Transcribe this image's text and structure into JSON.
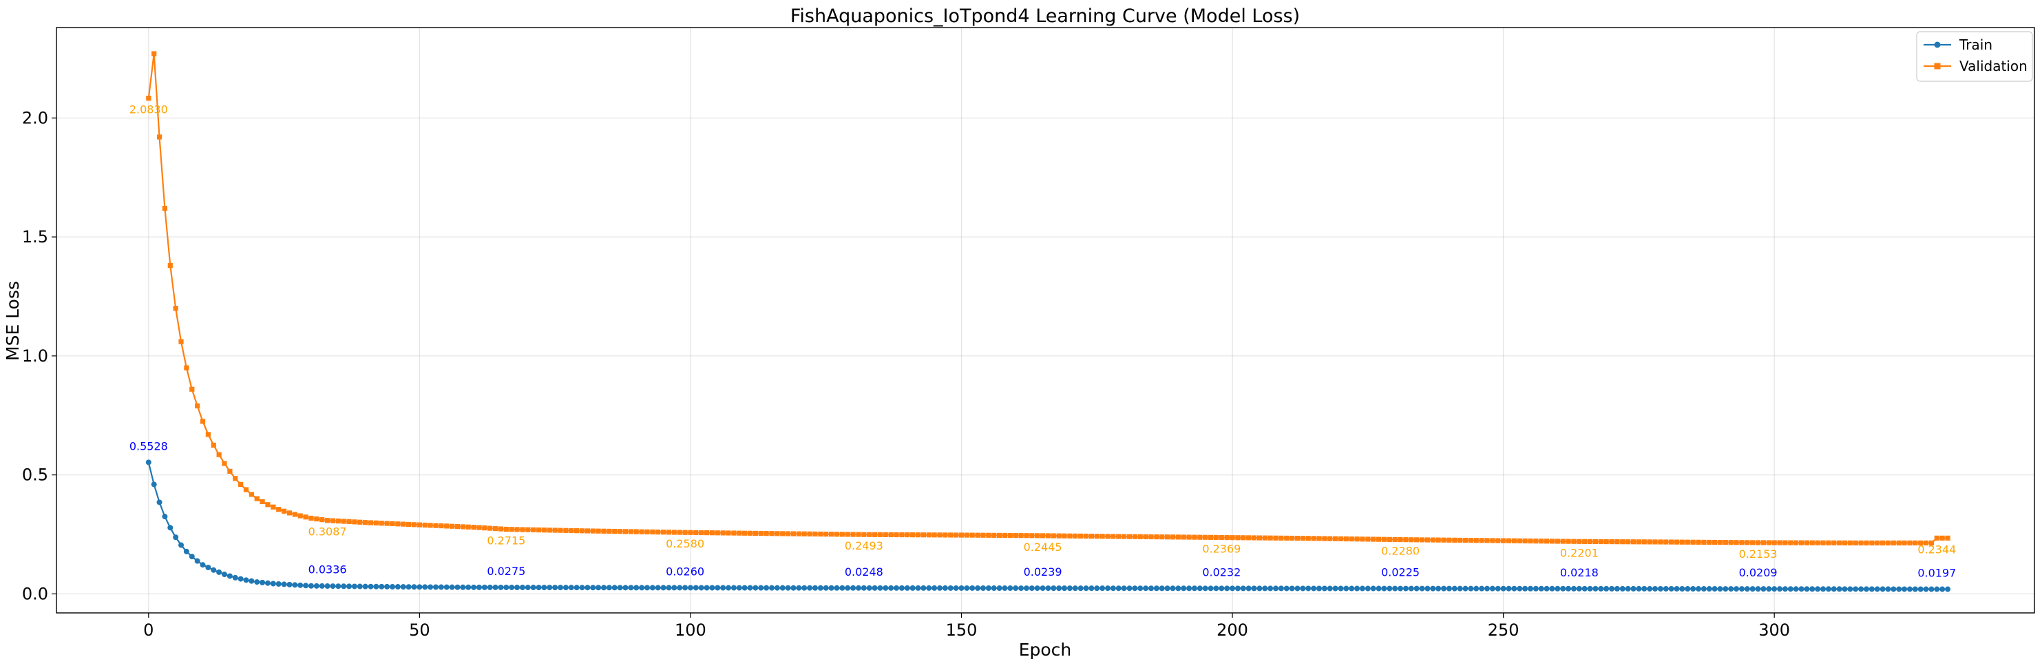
{
  "chart_data": {
    "type": "line",
    "title": "FishAquaponics_IoTpond4 Learning Curve (Model Loss)",
    "xlabel": "Epoch",
    "ylabel": "MSE Loss",
    "xlim": [
      -17,
      348
    ],
    "ylim": [
      -0.08,
      2.38
    ],
    "xticks": [
      0,
      50,
      100,
      150,
      200,
      250,
      300
    ],
    "yticks": [
      0.0,
      0.5,
      1.0,
      1.5,
      2.0
    ],
    "grid": true,
    "legend_position": "top-right",
    "n_epochs": 333,
    "series": [
      {
        "name": "Train",
        "color": "#1f77b4",
        "marker": "circle",
        "keypoints": [
          [
            0,
            0.5528
          ],
          [
            1,
            0.46
          ],
          [
            2,
            0.385
          ],
          [
            3,
            0.325
          ],
          [
            4,
            0.278
          ],
          [
            5,
            0.238
          ],
          [
            6,
            0.205
          ],
          [
            7,
            0.178
          ],
          [
            8,
            0.157
          ],
          [
            9,
            0.138
          ],
          [
            10,
            0.122
          ],
          [
            12,
            0.1
          ],
          [
            14,
            0.082
          ],
          [
            16,
            0.068
          ],
          [
            18,
            0.058
          ],
          [
            20,
            0.05
          ],
          [
            23,
            0.043
          ],
          [
            26,
            0.039
          ],
          [
            30,
            0.0336
          ],
          [
            40,
            0.031
          ],
          [
            50,
            0.029
          ],
          [
            60,
            0.0275
          ],
          [
            80,
            0.0265
          ],
          [
            90,
            0.026
          ],
          [
            100,
            0.0258
          ],
          [
            120,
            0.025
          ],
          [
            130,
            0.0248
          ],
          [
            150,
            0.0243
          ],
          [
            165,
            0.0239
          ],
          [
            180,
            0.0236
          ],
          [
            198,
            0.0232
          ],
          [
            215,
            0.0228
          ],
          [
            231,
            0.0225
          ],
          [
            248,
            0.0222
          ],
          [
            264,
            0.0218
          ],
          [
            280,
            0.0214
          ],
          [
            297,
            0.0209
          ],
          [
            315,
            0.0203
          ],
          [
            330,
            0.0197
          ],
          [
            332,
            0.0197
          ]
        ],
        "annotations": [
          {
            "epoch": 0,
            "value": 0.5528,
            "label": "0.5528"
          },
          {
            "epoch": 33,
            "value": 0.0336,
            "label": "0.0336"
          },
          {
            "epoch": 66,
            "value": 0.0275,
            "label": "0.0275"
          },
          {
            "epoch": 99,
            "value": 0.026,
            "label": "0.0260"
          },
          {
            "epoch": 132,
            "value": 0.0248,
            "label": "0.0248"
          },
          {
            "epoch": 165,
            "value": 0.0239,
            "label": "0.0239"
          },
          {
            "epoch": 198,
            "value": 0.0232,
            "label": "0.0232"
          },
          {
            "epoch": 231,
            "value": 0.0225,
            "label": "0.0225"
          },
          {
            "epoch": 264,
            "value": 0.0218,
            "label": "0.0218"
          },
          {
            "epoch": 297,
            "value": 0.0209,
            "label": "0.0209"
          },
          {
            "epoch": 330,
            "value": 0.0197,
            "label": "0.0197"
          }
        ]
      },
      {
        "name": "Validation",
        "color": "#ff7f0e",
        "marker": "square",
        "keypoints": [
          [
            0,
            2.083
          ],
          [
            1,
            2.27
          ],
          [
            2,
            1.92
          ],
          [
            3,
            1.62
          ],
          [
            4,
            1.38
          ],
          [
            5,
            1.2
          ],
          [
            6,
            1.06
          ],
          [
            7,
            0.95
          ],
          [
            8,
            0.86
          ],
          [
            9,
            0.79
          ],
          [
            10,
            0.725
          ],
          [
            11,
            0.67
          ],
          [
            12,
            0.625
          ],
          [
            13,
            0.585
          ],
          [
            14,
            0.548
          ],
          [
            15,
            0.515
          ],
          [
            16,
            0.485
          ],
          [
            17,
            0.46
          ],
          [
            18,
            0.438
          ],
          [
            19,
            0.418
          ],
          [
            20,
            0.4
          ],
          [
            22,
            0.375
          ],
          [
            24,
            0.355
          ],
          [
            26,
            0.34
          ],
          [
            28,
            0.328
          ],
          [
            30,
            0.318
          ],
          [
            33,
            0.3087
          ],
          [
            40,
            0.3
          ],
          [
            50,
            0.29
          ],
          [
            60,
            0.28
          ],
          [
            66,
            0.2715
          ],
          [
            80,
            0.265
          ],
          [
            99,
            0.258
          ],
          [
            110,
            0.255
          ],
          [
            132,
            0.2493
          ],
          [
            150,
            0.247
          ],
          [
            165,
            0.2445
          ],
          [
            180,
            0.241
          ],
          [
            198,
            0.2369
          ],
          [
            215,
            0.233
          ],
          [
            231,
            0.228
          ],
          [
            248,
            0.224
          ],
          [
            264,
            0.2201
          ],
          [
            280,
            0.218
          ],
          [
            297,
            0.2153
          ],
          [
            315,
            0.214
          ],
          [
            329,
            0.214
          ],
          [
            330,
            0.2344
          ],
          [
            332,
            0.2344
          ]
        ],
        "annotations": [
          {
            "epoch": 0,
            "value": 2.083,
            "label": "2.0830"
          },
          {
            "epoch": 33,
            "value": 0.3087,
            "label": "0.3087"
          },
          {
            "epoch": 66,
            "value": 0.2715,
            "label": "0.2715"
          },
          {
            "epoch": 99,
            "value": 0.258,
            "label": "0.2580"
          },
          {
            "epoch": 132,
            "value": 0.2493,
            "label": "0.2493"
          },
          {
            "epoch": 165,
            "value": 0.2445,
            "label": "0.2445"
          },
          {
            "epoch": 198,
            "value": 0.2369,
            "label": "0.2369"
          },
          {
            "epoch": 231,
            "value": 0.228,
            "label": "0.2280"
          },
          {
            "epoch": 264,
            "value": 0.2201,
            "label": "0.2201"
          },
          {
            "epoch": 297,
            "value": 0.2153,
            "label": "0.2153"
          },
          {
            "epoch": 330,
            "value": 0.2344,
            "label": "0.2344"
          }
        ]
      }
    ]
  }
}
